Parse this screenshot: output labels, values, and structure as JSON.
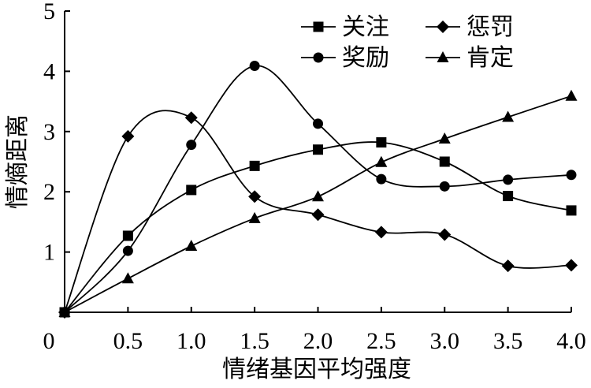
{
  "chart_data": {
    "type": "line",
    "xlabel": "情绪基因平均强度",
    "ylabel": "情熵距离",
    "x": [
      0,
      0.5,
      1.0,
      1.5,
      2.0,
      2.5,
      3.0,
      3.5,
      4.0
    ],
    "x_tick_labels": [
      "0",
      "0.5",
      "1.0",
      "1.5",
      "2.0",
      "2.5",
      "3.0",
      "3.5",
      "4.0"
    ],
    "y_tick_labels": [
      "1",
      "2",
      "3",
      "4",
      "5"
    ],
    "xlim": [
      0,
      4.0
    ],
    "ylim": [
      0,
      5
    ],
    "grid": false,
    "legend_position": "top-right",
    "series": [
      {
        "name": "关注",
        "marker": "square",
        "values": [
          0,
          1.27,
          2.03,
          2.43,
          2.7,
          2.82,
          2.5,
          1.93,
          1.69
        ]
      },
      {
        "name": "惩罚",
        "marker": "diamond",
        "values": [
          0,
          2.92,
          3.23,
          1.92,
          1.62,
          1.33,
          1.29,
          0.77,
          0.78
        ]
      },
      {
        "name": "奖励",
        "marker": "circle",
        "values": [
          0,
          1.02,
          2.78,
          4.09,
          3.13,
          2.21,
          2.09,
          2.2,
          2.28
        ]
      },
      {
        "name": "肯定",
        "marker": "triangle",
        "values": [
          0,
          0.56,
          1.1,
          1.56,
          1.92,
          2.49,
          2.88,
          3.24,
          3.59
        ]
      }
    ]
  }
}
